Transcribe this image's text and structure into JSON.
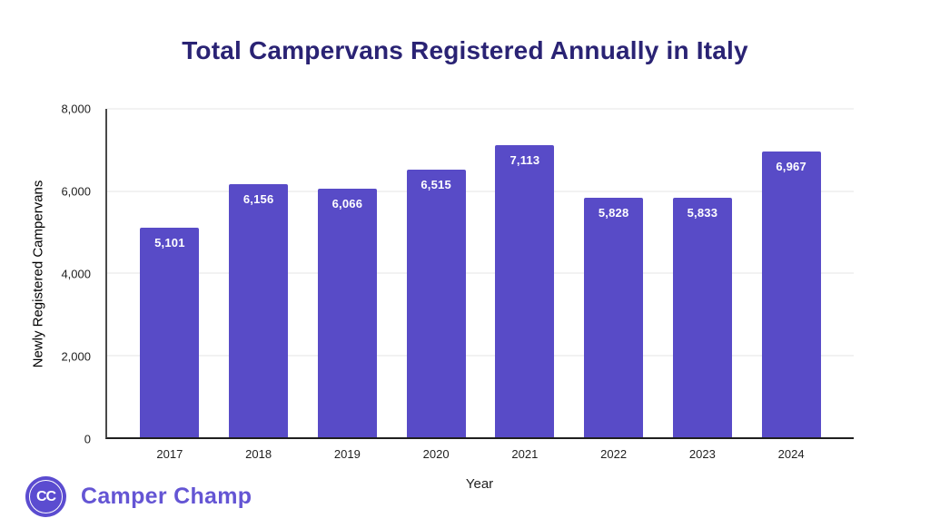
{
  "chart_data": {
    "type": "bar",
    "title": "Total Campervans Registered Annually in Italy",
    "xlabel": "Year",
    "ylabel": "Newly Registered Campervans",
    "categories": [
      "2017",
      "2018",
      "2019",
      "2020",
      "2021",
      "2022",
      "2023",
      "2024"
    ],
    "values": [
      5101,
      6156,
      6066,
      6515,
      7113,
      5828,
      5833,
      6967
    ],
    "value_labels": [
      "5,101",
      "6,156",
      "6,066",
      "6,515",
      "7,113",
      "5,828",
      "5,833",
      "6,967"
    ],
    "ylim": [
      0,
      8000
    ],
    "yticks": [
      0,
      2000,
      4000,
      6000,
      8000
    ],
    "ytick_labels": [
      "0",
      "2,000",
      "4,000",
      "6,000",
      "8,000"
    ],
    "grid": true,
    "legend": false,
    "bar_color": "#584bc7",
    "value_label_color": "#ffffff",
    "title_color": "#2a2374"
  },
  "brand": {
    "name": "Camper Champ",
    "logo_text": "CC",
    "accent_color": "#6455d4"
  }
}
